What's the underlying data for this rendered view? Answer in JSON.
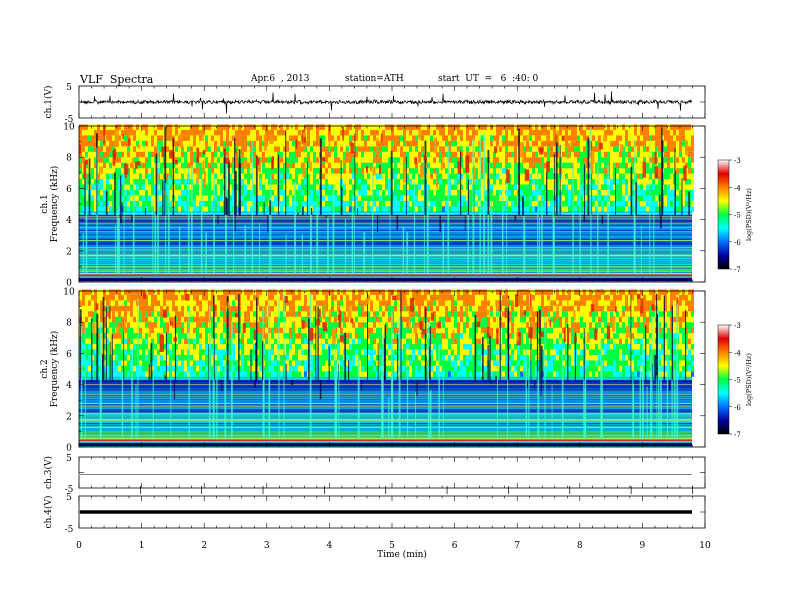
{
  "header": {
    "title": "VLF  Spectra",
    "date": "Apr.6  , 2013",
    "station": "station=ATH",
    "start": "start  UT  =   6  :40: 0"
  },
  "colors": {
    "colorbar_stops": [
      "#000000",
      "#0000a0",
      "#0070ff",
      "#00ffff",
      "#00ff40",
      "#ffff00",
      "#ff8000",
      "#e00000",
      "#ffffff"
    ],
    "waveform": "#000000"
  },
  "chart_data": [
    {
      "type": "line",
      "panel": "ch1",
      "ylabel": "ch.1(V)",
      "yticks": [
        "5",
        "-5"
      ],
      "ylim": [
        -5,
        5
      ],
      "description_values": "noisy waveform around 0 V with spikes to about ±3 V"
    },
    {
      "type": "heatmap",
      "panel": "ch1-spectrogram",
      "ylabel_top": "ch.1",
      "ylabel": "Frequency  (kHz)",
      "yticks": [
        "0",
        "2",
        "4",
        "6",
        "8",
        "10"
      ],
      "ylim": [
        0,
        10
      ],
      "xlim": [
        0,
        9.8
      ],
      "colorbar": {
        "label": "log(PSD)(V²/Hz)",
        "ticks": [
          "-3",
          "-4",
          "-5",
          "-6",
          "-7"
        ],
        "range": [
          -7,
          -3
        ]
      }
    },
    {
      "type": "heatmap",
      "panel": "ch2-spectrogram",
      "ylabel_top": "ch.2",
      "ylabel": "Frequency  (kHz)",
      "yticks": [
        "0",
        "2",
        "4",
        "6",
        "8",
        "10"
      ],
      "ylim": [
        0,
        10
      ],
      "xlim": [
        0,
        9.8
      ],
      "colorbar": {
        "label": "log(PSD)(V²/Hz)",
        "ticks": [
          "-3",
          "-4",
          "-5",
          "-6",
          "-7"
        ],
        "range": [
          -7,
          -3
        ]
      }
    },
    {
      "type": "line",
      "panel": "ch3",
      "ylabel": "ch.3(V)",
      "yticks": [
        "5",
        "-5"
      ],
      "ylim": [
        -5,
        5
      ]
    },
    {
      "type": "line",
      "panel": "ch4",
      "ylabel": "ch.4(V)",
      "yticks": [
        "5",
        "-5"
      ],
      "ylim": [
        -5,
        5
      ]
    },
    {
      "type": "axis",
      "panel": "x-axis",
      "xlabel": "Time  (min)",
      "xticks": [
        "0",
        "1",
        "2",
        "3",
        "4",
        "5",
        "6",
        "7",
        "8",
        "9",
        "10"
      ],
      "xlim": [
        0,
        10
      ]
    }
  ]
}
